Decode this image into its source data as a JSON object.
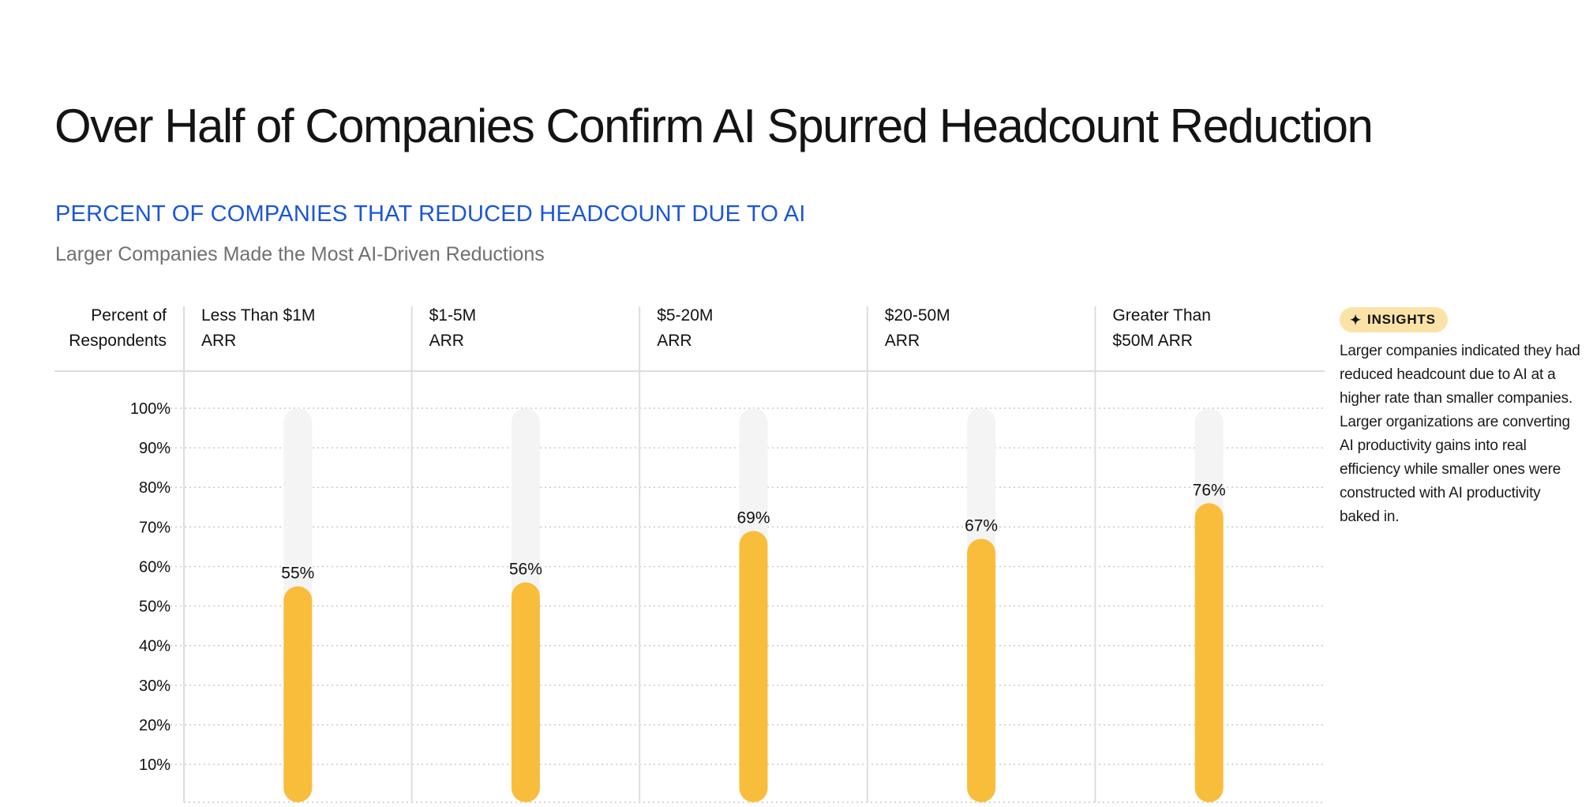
{
  "header": {
    "title": "Over Half of Companies Confirm AI Spurred Headcount Reduction",
    "subtitle": "PERCENT OF COMPANIES THAT REDUCED HEADCOUNT DUE TO AI",
    "caption": "Larger Companies Made the Most AI-Driven Reductions"
  },
  "insights": {
    "badge_label": "INSIGHTS",
    "badge_icon": "sparkle-icon",
    "text": "Larger companies indicated they had reduced headcount due to AI at a higher rate than smaller companies. Larger organizations are converting AI productivity gains into real efficiency while smaller ones were constructed with AI productivity baked in."
  },
  "colors": {
    "bar": "#f9bd3c",
    "track": "#f4f4f4",
    "subtitle": "#1a56db",
    "badge_bg": "#fbe3a8"
  },
  "chart_data": {
    "type": "bar",
    "ylabel_lines": [
      "Percent of",
      "Respondents"
    ],
    "categories": [
      [
        "Less Than $1M",
        "ARR"
      ],
      [
        "$1-5M",
        "ARR"
      ],
      [
        "$5-20M",
        "ARR"
      ],
      [
        "$20-50M",
        "ARR"
      ],
      [
        "Greater Than",
        "$50M ARR"
      ]
    ],
    "values": [
      55,
      56,
      69,
      67,
      76
    ],
    "value_labels": [
      "55%",
      "56%",
      "69%",
      "67%",
      "76%"
    ],
    "yticks": [
      {
        "value": 100,
        "label": "100%"
      },
      {
        "value": 90,
        "label": "90%"
      },
      {
        "value": 80,
        "label": "80%"
      },
      {
        "value": 70,
        "label": "70%"
      },
      {
        "value": 60,
        "label": "60%"
      },
      {
        "value": 50,
        "label": "50%"
      },
      {
        "value": 40,
        "label": "40%"
      },
      {
        "value": 30,
        "label": "30%"
      },
      {
        "value": 20,
        "label": "20%"
      },
      {
        "value": 10,
        "label": "10%"
      }
    ],
    "ylim": [
      0,
      100
    ],
    "grid": true
  }
}
